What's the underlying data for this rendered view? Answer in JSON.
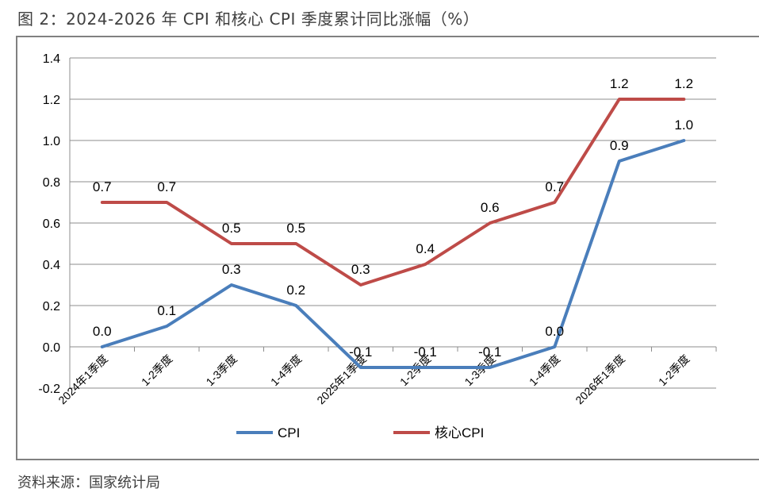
{
  "title": "图 2：2024-2026 年 CPI 和核心 CPI 季度累计同比涨幅（%）",
  "source": "资料来源：国家统计局",
  "chart_data": {
    "type": "line",
    "categories": [
      "2024年1季度",
      "1-2季度",
      "1-3季度",
      "1-4季度",
      "2025年1季度",
      "1-2季度",
      "1-3季度",
      "1-4季度",
      "2026年1季度",
      "1-2季度"
    ],
    "series": [
      {
        "name": "CPI",
        "color": "#4a7ebb",
        "values": [
          0.0,
          0.1,
          0.3,
          0.2,
          -0.1,
          -0.1,
          -0.1,
          0.0,
          0.9,
          1.0
        ],
        "labels": [
          "0.0",
          "0.1",
          "0.3",
          "0.2",
          "-0.1",
          "-0.1",
          "-0.1",
          "0.0",
          "0.9",
          "1.0"
        ]
      },
      {
        "name": "核心CPI",
        "color": "#be4b48",
        "values": [
          0.7,
          0.7,
          0.5,
          0.5,
          0.3,
          0.4,
          0.6,
          0.7,
          1.2,
          1.2
        ],
        "labels": [
          "0.7",
          "0.7",
          "0.5",
          "0.5",
          "0.3",
          "0.4",
          "0.6",
          "0.7",
          "1.2",
          "1.2"
        ]
      }
    ],
    "yticks": [
      "-0.2",
      "0.0",
      "0.2",
      "0.4",
      "0.6",
      "0.8",
      "1.0",
      "1.2",
      "1.4"
    ],
    "ylim": [
      -0.2,
      1.4
    ],
    "grid": true,
    "legend_position": "bottom"
  }
}
